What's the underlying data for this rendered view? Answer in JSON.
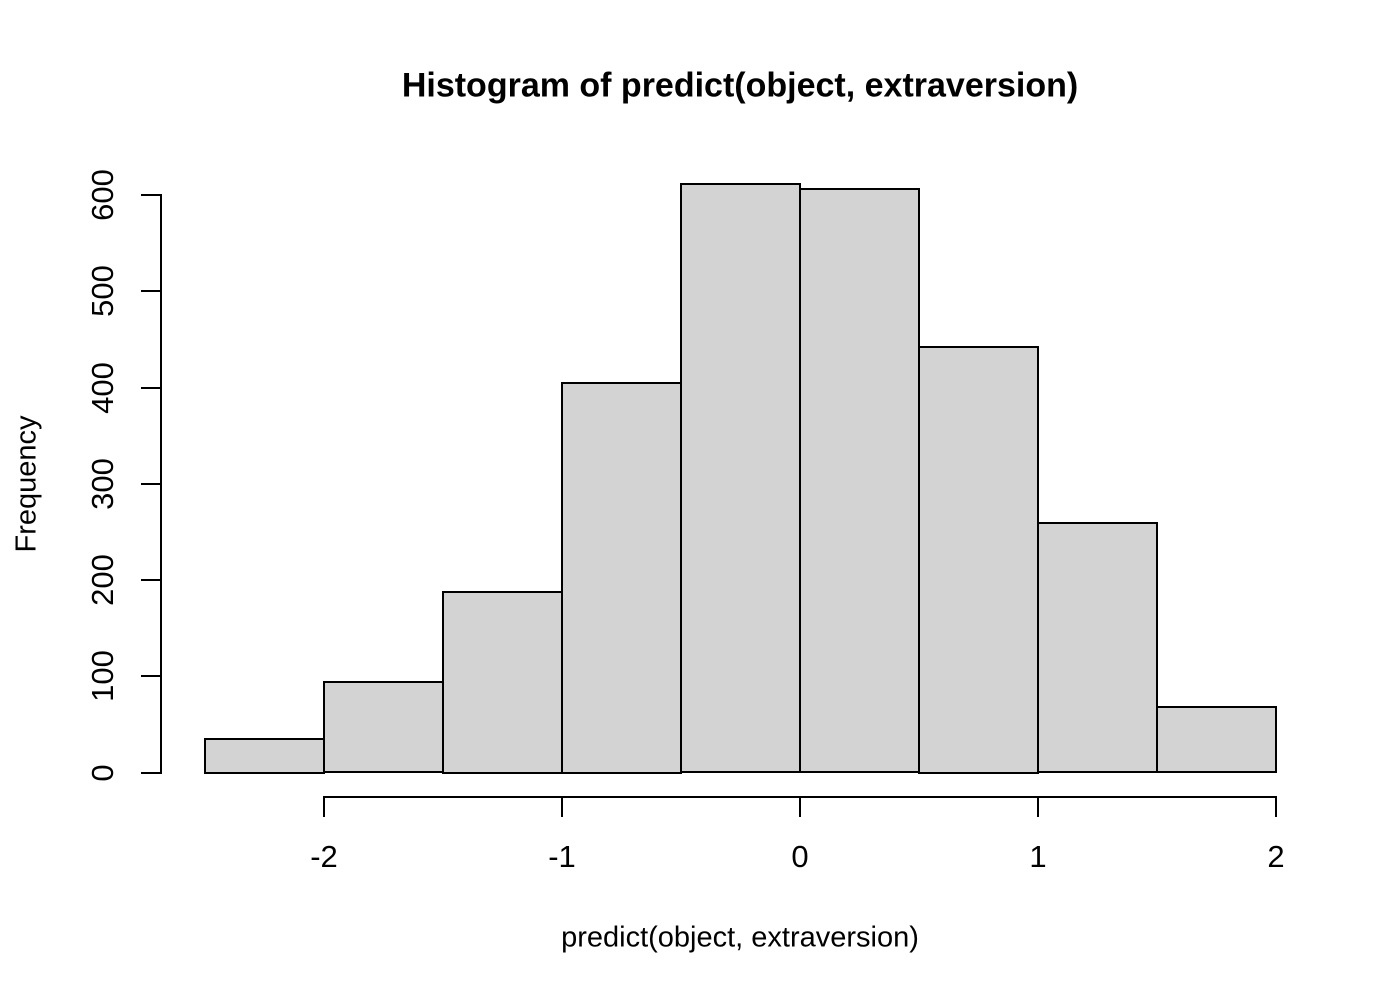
{
  "chart_data": {
    "type": "bar",
    "subtype": "histogram",
    "title": "Histogram of predict(object, extraversion)",
    "xlabel": "predict(object, extraversion)",
    "ylabel": "Frequency",
    "bin_edges": [
      -2.5,
      -2.0,
      -1.5,
      -1.0,
      -0.5,
      0.0,
      0.5,
      1.0,
      1.5,
      2.0
    ],
    "values": [
      35,
      94,
      188,
      405,
      611,
      606,
      442,
      259,
      68
    ],
    "x_ticks": [
      -2,
      -1,
      0,
      1,
      2
    ],
    "y_ticks": [
      0,
      100,
      200,
      300,
      400,
      500,
      600
    ],
    "xlim": [
      -2.68,
      2.18
    ],
    "ylim": [
      0,
      600
    ],
    "grid": false,
    "legend": "none",
    "colors": {
      "bar_fill": "#d3d3d3",
      "bar_border": "#000000",
      "axis": "#000000",
      "text": "#000000",
      "background": "#ffffff"
    }
  }
}
